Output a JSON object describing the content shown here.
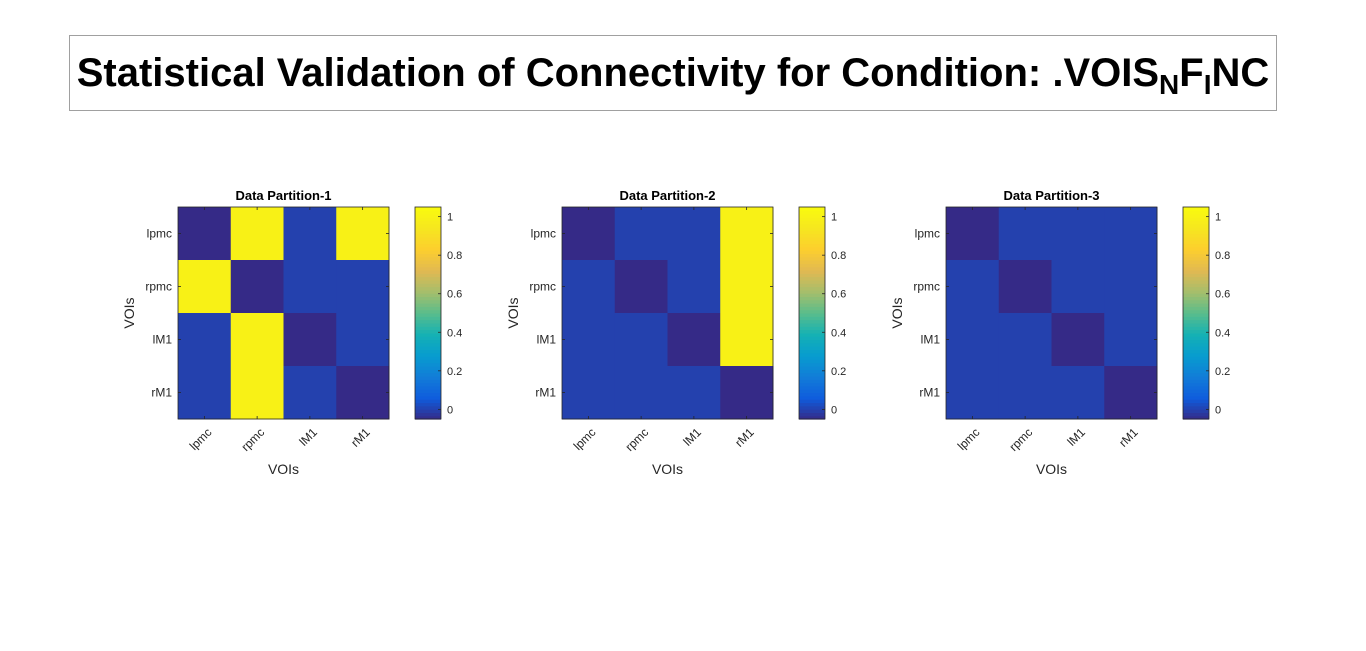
{
  "title": {
    "parts": [
      {
        "text": "Statistical Validation of Connectivity for Condition: .VOIS",
        "sub": false
      },
      {
        "text": "N",
        "sub": true
      },
      {
        "text": "F",
        "sub": false
      },
      {
        "text": "I",
        "sub": true
      },
      {
        "text": "NC",
        "sub": false
      }
    ]
  },
  "colormap": "parula",
  "chart_data": [
    {
      "type": "heatmap",
      "title": "Data Partition-1",
      "xlabel": "VOIs",
      "ylabel": "VOIs",
      "x_ticklabels": [
        "lpmc",
        "rpmc",
        "lM1",
        "rM1"
      ],
      "y_ticklabels": [
        "lpmc",
        "rpmc",
        "lM1",
        "rM1"
      ],
      "clim": [
        -0.05,
        1.05
      ],
      "colorbar_ticks": [
        0,
        0.2,
        0.4,
        0.6,
        0.8,
        1
      ],
      "values": [
        [
          -0.05,
          1,
          0,
          1
        ],
        [
          1,
          -0.05,
          0,
          0
        ],
        [
          0,
          1,
          -0.05,
          0
        ],
        [
          0,
          1,
          0,
          -0.05
        ]
      ]
    },
    {
      "type": "heatmap",
      "title": "Data Partition-2",
      "xlabel": "VOIs",
      "ylabel": "VOIs",
      "x_ticklabels": [
        "lpmc",
        "rpmc",
        "lM1",
        "rM1"
      ],
      "y_ticklabels": [
        "lpmc",
        "rpmc",
        "lM1",
        "rM1"
      ],
      "clim": [
        -0.05,
        1.05
      ],
      "colorbar_ticks": [
        0,
        0.2,
        0.4,
        0.6,
        0.8,
        1
      ],
      "values": [
        [
          -0.05,
          0,
          0,
          1
        ],
        [
          0,
          -0.05,
          0,
          1
        ],
        [
          0,
          0,
          -0.05,
          1
        ],
        [
          0,
          0,
          0,
          -0.05
        ]
      ]
    },
    {
      "type": "heatmap",
      "title": "Data Partition-3",
      "xlabel": "VOIs",
      "ylabel": "VOIs",
      "x_ticklabels": [
        "lpmc",
        "rpmc",
        "lM1",
        "rM1"
      ],
      "y_ticklabels": [
        "lpmc",
        "rpmc",
        "lM1",
        "rM1"
      ],
      "clim": [
        -0.05,
        1.05
      ],
      "colorbar_ticks": [
        0,
        0.2,
        0.4,
        0.6,
        0.8,
        1
      ],
      "values": [
        [
          -0.05,
          0,
          0,
          0
        ],
        [
          0,
          -0.05,
          0,
          0
        ],
        [
          0,
          0,
          -0.05,
          0
        ],
        [
          0,
          0,
          0,
          -0.05
        ]
      ]
    }
  ]
}
